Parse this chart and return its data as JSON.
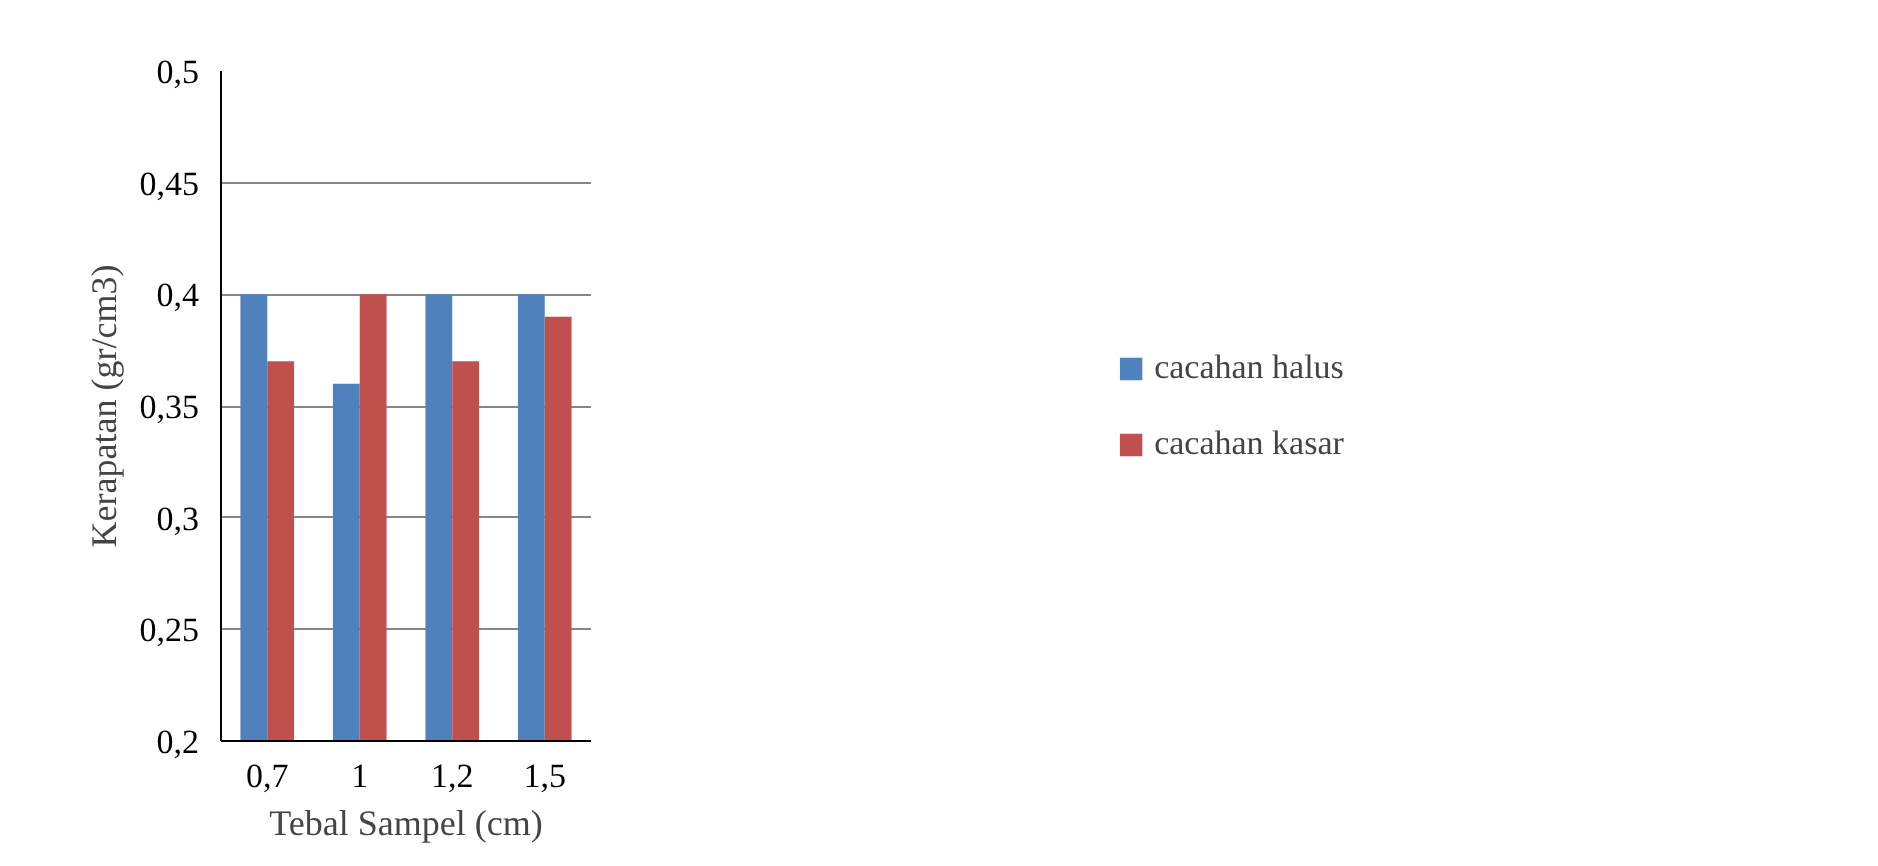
{
  "chart_data": {
    "type": "bar",
    "xlabel": "Tebal Sampel (cm)",
    "ylabel": "Kerapatan (gr/cm3)",
    "categories": [
      "0,7",
      "1",
      "1,2",
      "1,5"
    ],
    "series": [
      {
        "name": "cacahan halus",
        "color": "#4f81bd",
        "values": [
          0.4,
          0.36,
          0.4,
          0.4
        ]
      },
      {
        "name": "cacahan kasar",
        "color": "#c0504d",
        "values": [
          0.37,
          0.4,
          0.37,
          0.39
        ]
      }
    ],
    "ylim": [
      0.2,
      0.5
    ],
    "yticks": [
      {
        "value": 0.2,
        "label": "0,2"
      },
      {
        "value": 0.25,
        "label": "0,25"
      },
      {
        "value": 0.3,
        "label": "0,3"
      },
      {
        "value": 0.35,
        "label": "0,35"
      },
      {
        "value": 0.4,
        "label": "0,4"
      },
      {
        "value": 0.45,
        "label": "0,45"
      },
      {
        "value": 0.5,
        "label": "0,5"
      }
    ],
    "grid": "y",
    "legend": "right"
  }
}
